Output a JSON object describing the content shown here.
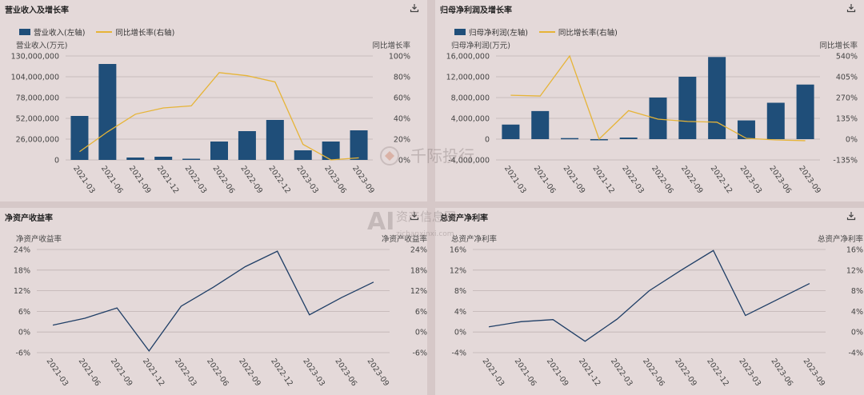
{
  "colors": {
    "bar": "#1f4e79",
    "line_yellow": "#e6b437",
    "line_blue": "#1f3e66",
    "axis_text": "#444444",
    "grid": "#bfb3b3"
  },
  "icons": {
    "download": "download-icon"
  },
  "panels": [
    {
      "title": "营业收入及增长率",
      "legend_bar": "营业收入(左轴)",
      "legend_line": "同比增长率(右轴)",
      "left_unit": "营业收入(万元)",
      "right_unit": "同比增长率"
    },
    {
      "title": "归母净利润及增长率",
      "legend_bar": "归母净利润(左轴)",
      "legend_line": "同比增长率(右轴)",
      "left_unit": "归母净利润(万元)",
      "right_unit": "同比增长率"
    },
    {
      "title": "净资产收益率",
      "left_unit": "净资产收益率",
      "right_unit": "净资产收益率"
    },
    {
      "title": "总资产净利率",
      "left_unit": "总资产净利率",
      "right_unit": "总资产净利率"
    }
  ],
  "watermark": {
    "brand": "千际投行",
    "site_cn": "资产信息网",
    "site_url": "zichanxinxi.com"
  },
  "chart_data": [
    {
      "type": "bar",
      "categories": [
        "2021-03",
        "2021-06",
        "2021-09",
        "2021-12",
        "2022-03",
        "2022-06",
        "2022-09",
        "2022-12",
        "2023-03",
        "2023-06",
        "2023-09"
      ],
      "series": [
        {
          "name": "营业收入(左轴)",
          "values": [
            55000000,
            120000000,
            3000000,
            4000000,
            1500000,
            23000000,
            36000000,
            50000000,
            12000000,
            23000000,
            37000000
          ]
        },
        {
          "name": "同比增长率(右轴)",
          "type": "line",
          "values": [
            8,
            27,
            44,
            50,
            52,
            84,
            81,
            75,
            15,
            0,
            2
          ]
        }
      ],
      "left_ticks": [
        "0",
        "26,000,000",
        "52,000,000",
        "78,000,000",
        "104,000,000",
        "130,000,000"
      ],
      "right_ticks": [
        "0%",
        "20%",
        "40%",
        "60%",
        "80%",
        "100%"
      ],
      "ylim": [
        0,
        130000000
      ],
      "ylim_right": [
        0,
        100
      ]
    },
    {
      "type": "bar",
      "categories": [
        "2021-03",
        "2021-06",
        "2021-09",
        "2021-12",
        "2022-03",
        "2022-06",
        "2022-09",
        "2022-12",
        "2023-03",
        "2023-06",
        "2023-09"
      ],
      "series": [
        {
          "name": "归母净利润(左轴)",
          "values": [
            2800000,
            5400000,
            200000,
            -200000,
            300000,
            8000000,
            12000000,
            15800000,
            3600000,
            7000000,
            10500000
          ]
        },
        {
          "name": "同比增长率(右轴)",
          "type": "line",
          "values": [
            285,
            280,
            540,
            0,
            185,
            130,
            115,
            110,
            5,
            -5,
            -10
          ]
        }
      ],
      "left_ticks": [
        "-4,000,000",
        "0",
        "4,000,000",
        "8,000,000",
        "12,000,000",
        "16,000,000"
      ],
      "right_ticks": [
        "-135%",
        "0%",
        "135%",
        "270%",
        "405%",
        "540%"
      ],
      "ylim": [
        -4000000,
        16000000
      ],
      "ylim_right": [
        -135,
        540
      ]
    },
    {
      "type": "line",
      "categories": [
        "2021-03",
        "2021-06",
        "2021-09",
        "2021-12",
        "2022-03",
        "2022-06",
        "2022-09",
        "2022-12",
        "2023-03",
        "2023-06",
        "2023-09"
      ],
      "series": [
        {
          "values": [
            2,
            4,
            7,
            -5.5,
            7.5,
            13,
            19,
            23.5,
            5,
            10,
            14.5
          ]
        }
      ],
      "left_ticks": [
        "-6%",
        "0%",
        "6%",
        "12%",
        "18%",
        "24%"
      ],
      "right_ticks": [
        "-6%",
        "0%",
        "6%",
        "12%",
        "18%",
        "24%"
      ],
      "ylim": [
        -6,
        24
      ]
    },
    {
      "type": "line",
      "categories": [
        "2021-03",
        "2021-06",
        "2021-09",
        "2021-12",
        "2022-03",
        "2022-06",
        "2022-09",
        "2022-12",
        "2023-03",
        "2023-06",
        "2023-09"
      ],
      "series": [
        {
          "values": [
            1,
            2,
            2.4,
            -1.8,
            2.5,
            8,
            12,
            15.8,
            3.2,
            6.3,
            9.4
          ]
        }
      ],
      "left_ticks": [
        "-4%",
        "0%",
        "4%",
        "8%",
        "12%",
        "16%"
      ],
      "right_ticks": [
        "-4%",
        "0%",
        "4%",
        "8%",
        "12%",
        "16%"
      ],
      "ylim": [
        -4,
        16
      ]
    }
  ]
}
